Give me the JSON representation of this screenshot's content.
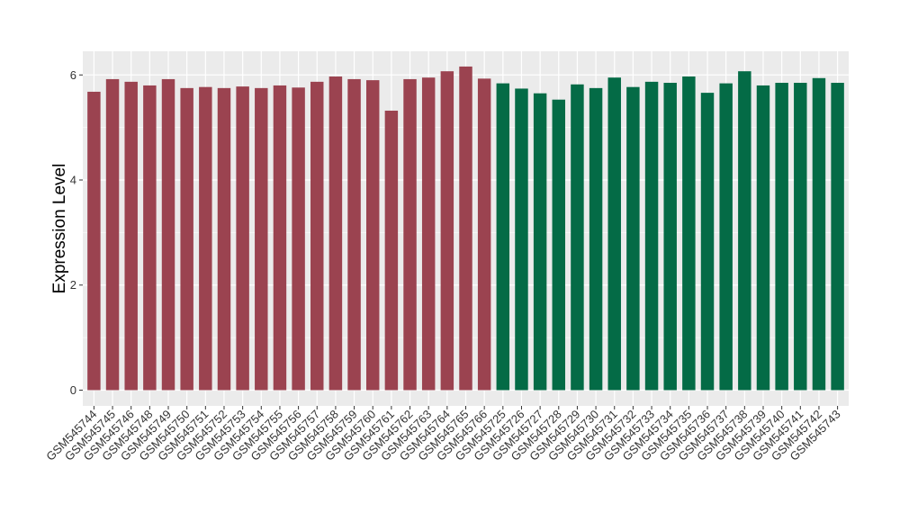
{
  "chart_data": {
    "type": "bar",
    "xlabel": "",
    "ylabel": "Expression Level",
    "ylim": [
      -0.3,
      6.45
    ],
    "yticks": [
      0,
      2,
      4,
      6
    ],
    "grid": true,
    "categories": [
      "GSM545744",
      "GSM545745",
      "GSM545746",
      "GSM545748",
      "GSM545749",
      "GSM545750",
      "GSM545751",
      "GSM545752",
      "GSM545753",
      "GSM545754",
      "GSM545755",
      "GSM545756",
      "GSM545757",
      "GSM545758",
      "GSM545759",
      "GSM545760",
      "GSM545761",
      "GSM545762",
      "GSM545763",
      "GSM545764",
      "GSM545765",
      "GSM545766",
      "GSM545725",
      "GSM545726",
      "GSM545727",
      "GSM545728",
      "GSM545729",
      "GSM545730",
      "GSM545731",
      "GSM545732",
      "GSM545733",
      "GSM545734",
      "GSM545735",
      "GSM545736",
      "GSM545737",
      "GSM545738",
      "GSM545739",
      "GSM545740",
      "GSM545741",
      "GSM545742",
      "GSM545743"
    ],
    "values": [
      5.68,
      5.92,
      5.87,
      5.8,
      5.92,
      5.75,
      5.77,
      5.75,
      5.78,
      5.75,
      5.8,
      5.76,
      5.87,
      5.97,
      5.92,
      5.9,
      5.32,
      5.92,
      5.95,
      6.07,
      6.16,
      5.93,
      5.84,
      5.74,
      5.65,
      5.53,
      5.82,
      5.75,
      5.95,
      5.77,
      5.87,
      5.85,
      5.97,
      5.66,
      5.84,
      6.07,
      5.8,
      5.85,
      5.85,
      5.94,
      5.85
    ],
    "bar_colors": [
      "#9b4350",
      "#9b4350",
      "#9b4350",
      "#9b4350",
      "#9b4350",
      "#9b4350",
      "#9b4350",
      "#9b4350",
      "#9b4350",
      "#9b4350",
      "#9b4350",
      "#9b4350",
      "#9b4350",
      "#9b4350",
      "#9b4350",
      "#9b4350",
      "#9b4350",
      "#9b4350",
      "#9b4350",
      "#9b4350",
      "#9b4350",
      "#9b4350",
      "#046b46",
      "#046b46",
      "#046b46",
      "#046b46",
      "#046b46",
      "#046b46",
      "#046b46",
      "#046b46",
      "#046b46",
      "#046b46",
      "#046b46",
      "#046b46",
      "#046b46",
      "#046b46",
      "#046b46",
      "#046b46",
      "#046b46",
      "#046b46",
      "#046b46"
    ],
    "colors": {
      "group_a": "#9b4350",
      "group_b": "#046b46",
      "panel_background": "#ebebeb",
      "gridline": "#ffffff"
    }
  }
}
